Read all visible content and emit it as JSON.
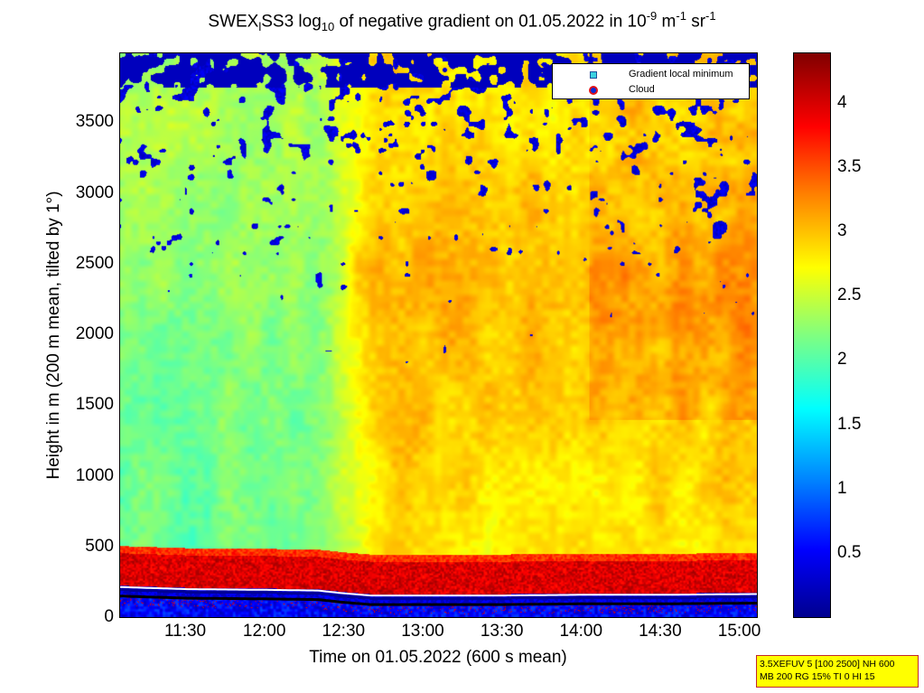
{
  "title": {
    "part1": "SWEX",
    "sub1": "l",
    "part2": "SS3 log",
    "sub2": "10",
    "part3": " of negative gradient on 01.05.2022 in 10",
    "sup1": "-9",
    "part4": " m",
    "sup2": "-1",
    "part5": " sr",
    "sup3": "-1"
  },
  "chart_data": {
    "type": "heatmap",
    "xlabel": "Time on 01.05.2022 (600 s mean)",
    "ylabel": "Height in m (200 m mean, tilted by 1°)",
    "xlim": [
      "11:05",
      "15:07"
    ],
    "ylim": [
      0,
      4000
    ],
    "xticks": [
      {
        "value": "11:30",
        "label": "11:30"
      },
      {
        "value": "12:00",
        "label": "12:00"
      },
      {
        "value": "12:30",
        "label": "12:30"
      },
      {
        "value": "13:00",
        "label": "13:00"
      },
      {
        "value": "13:30",
        "label": "13:30"
      },
      {
        "value": "14:00",
        "label": "14:00"
      },
      {
        "value": "14:30",
        "label": "14:30"
      },
      {
        "value": "15:00",
        "label": "15:00"
      }
    ],
    "yticks": [
      0,
      500,
      1000,
      1500,
      2000,
      2500,
      3000,
      3500
    ],
    "colorbar": {
      "range": [
        0,
        4.4
      ],
      "ticks": [
        0.5,
        1,
        1.5,
        2,
        2.5,
        3,
        3.5,
        4
      ],
      "colormap": "jet"
    },
    "legend": {
      "placement": "top-right",
      "entries": [
        {
          "label": "Gradient local minimum",
          "marker": "square",
          "color": "#3ad1e0"
        },
        {
          "label": "Cloud",
          "marker": "circle",
          "color": "#e0121a"
        }
      ]
    },
    "boundary_layer_top": {
      "times": [
        "11:05",
        "11:30",
        "12:00",
        "12:20",
        "12:30",
        "12:40",
        "13:00",
        "13:30",
        "14:00",
        "14:30",
        "15:05"
      ],
      "height": [
        200,
        185,
        180,
        175,
        155,
        140,
        140,
        140,
        145,
        145,
        150
      ]
    }
  },
  "infobox": {
    "line1": "3.5XEFUV 5 [100 2500] NH 600",
    "line2": "MB 200 RG 15% TI 0 HI 15"
  }
}
